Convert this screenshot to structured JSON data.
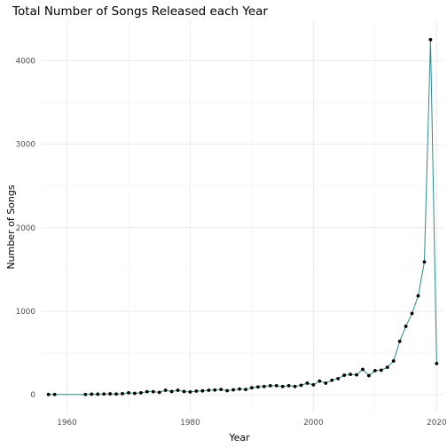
{
  "chart_data": {
    "type": "line",
    "title": "Total Number of Songs Released each Year",
    "xlabel": "Year",
    "ylabel": "Number of Songs",
    "xlim": [
      1955.9,
      2021.1
    ],
    "ylim": [
      -210,
      4460
    ],
    "x_ticks": [
      1960,
      1980,
      2000,
      2020
    ],
    "y_ticks": [
      0,
      1000,
      2000,
      3000,
      4000
    ],
    "grid": true,
    "legend": "none",
    "colors": {
      "line": "#2e8b8b",
      "points": "#000000"
    },
    "series": [
      {
        "x": [
          1957,
          1958,
          1963,
          1964,
          1965,
          1966,
          1967,
          1968,
          1969,
          1970,
          1971,
          1972,
          1973,
          1974,
          1975,
          1976,
          1977,
          1978,
          1979,
          1980,
          1981,
          1982,
          1983,
          1984,
          1985,
          1986,
          1987,
          1988,
          1989,
          1990,
          1991,
          1992,
          1993,
          1994,
          1995,
          1996,
          1997,
          1998,
          1999,
          2000,
          2001,
          2002,
          2003,
          2004,
          2005,
          2006,
          2007,
          2008,
          2009,
          2010,
          2011,
          2012,
          2013,
          2014,
          2015,
          2016,
          2017,
          2018,
          2019,
          2020
        ],
        "y": [
          5,
          5,
          5,
          8,
          8,
          10,
          12,
          10,
          14,
          25,
          18,
          25,
          38,
          38,
          30,
          55,
          40,
          55,
          40,
          35,
          45,
          48,
          55,
          58,
          65,
          50,
          60,
          70,
          65,
          85,
          95,
          100,
          110,
          110,
          100,
          110,
          100,
          115,
          140,
          120,
          165,
          140,
          175,
          195,
          235,
          245,
          240,
          305,
          230,
          290,
          295,
          330,
          405,
          640,
          820,
          975,
          1185,
          1590,
          4250,
          375
        ]
      }
    ]
  }
}
